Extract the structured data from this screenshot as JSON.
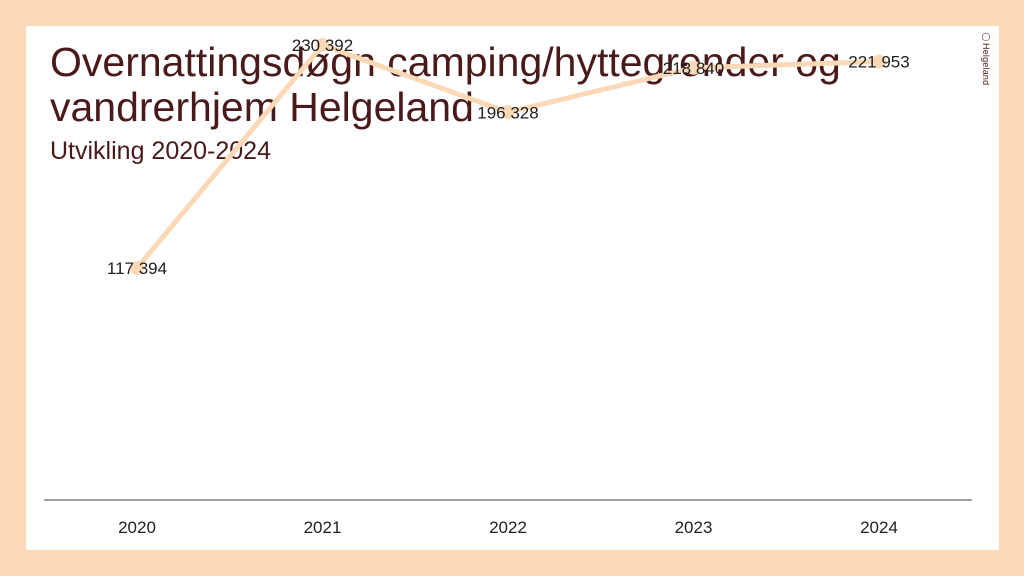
{
  "slide": {
    "title": "Overnattingsdøgn camping/hyttegrender og vandrerhjem Helgeland",
    "subtitle": "Utvikling 2020-2024",
    "logo_text": "Helgeland",
    "logo_icon": "helgeland-logo-icon"
  },
  "colors": {
    "background": "#fcd9b6",
    "line": "#fcd9b6",
    "text": "#4a1a1a"
  },
  "chart_data": {
    "type": "line",
    "categories": [
      "2020",
      "2021",
      "2022",
      "2023",
      "2024"
    ],
    "values": [
      117394,
      230392,
      196328,
      218840,
      221953
    ],
    "value_labels": [
      "117 394",
      "230 392",
      "196 328",
      "218 840",
      "221 953"
    ],
    "title": "Overnattingsdøgn camping/hyttegrender og vandrerhjem Helgeland",
    "subtitle": "Utvikling 2020-2024",
    "xlabel": "",
    "ylabel": "",
    "ylim": [
      0,
      240000
    ],
    "grid": false,
    "legend": "none"
  }
}
